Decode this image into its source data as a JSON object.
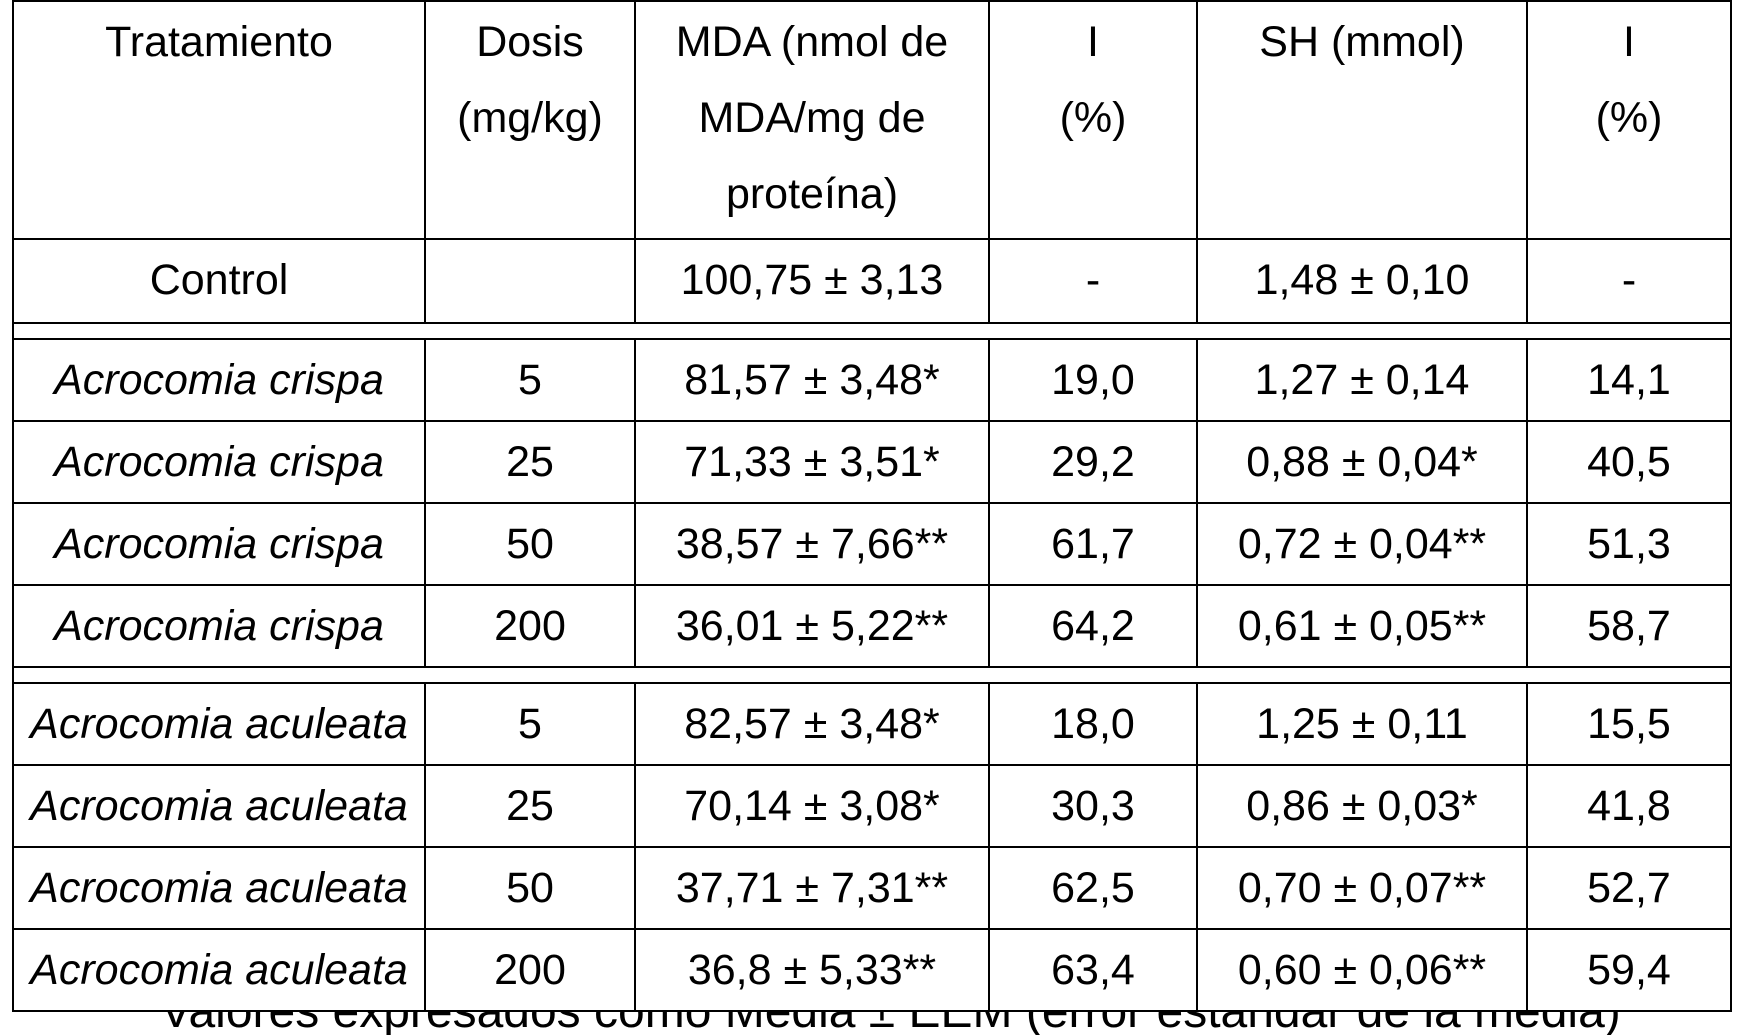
{
  "table": {
    "headers": {
      "treatment": "Tratamiento",
      "dose_line1": "Dosis",
      "dose_line2": "(mg/kg)",
      "mda_line1": "MDA (nmol de",
      "mda_line2": "MDA/mg de",
      "mda_line3": "proteína)",
      "i_mda_line1": "I",
      "i_mda_line2": "(%)",
      "sh_line1": "SH (mmol)",
      "i_sh_line1": "I",
      "i_sh_line2": "(%)"
    },
    "control": {
      "treatment": "Control",
      "dose": "",
      "mda": "100,75 ± 3,13",
      "i_mda": "-",
      "sh": "1,48 ± 0,10",
      "i_sh": "-"
    },
    "crispa_rows": [
      {
        "treatment": "Acrocomia crispa",
        "dose": "5",
        "mda": "81,57 ± 3,48*",
        "i_mda": "19,0",
        "sh": "1,27 ± 0,14",
        "i_sh": "14,1"
      },
      {
        "treatment": "Acrocomia crispa",
        "dose": "25",
        "mda": "71,33 ± 3,51*",
        "i_mda": "29,2",
        "sh": "0,88 ± 0,04*",
        "i_sh": "40,5"
      },
      {
        "treatment": "Acrocomia crispa",
        "dose": "50",
        "mda": "38,57 ± 7,66**",
        "i_mda": "61,7",
        "sh": "0,72 ± 0,04**",
        "i_sh": "51,3"
      },
      {
        "treatment": "Acrocomia crispa",
        "dose": "200",
        "mda": "36,01 ± 5,22**",
        "i_mda": "64,2",
        "sh": "0,61 ± 0,05**",
        "i_sh": "58,7"
      }
    ],
    "aculeata_rows": [
      {
        "treatment": "Acrocomia aculeata",
        "dose": "5",
        "mda": "82,57 ± 3,48*",
        "i_mda": "18,0",
        "sh": "1,25 ± 0,11",
        "i_sh": "15,5"
      },
      {
        "treatment": "Acrocomia aculeata",
        "dose": "25",
        "mda": "70,14 ± 3,08*",
        "i_mda": "30,3",
        "sh": "0,86 ± 0,03*",
        "i_sh": "41,8"
      },
      {
        "treatment": "Acrocomia aculeata",
        "dose": "50",
        "mda": "37,71 ± 7,31**",
        "i_mda": "62,5",
        "sh": "0,70 ± 0,07**",
        "i_sh": "52,7"
      },
      {
        "treatment": "Acrocomia aculeata",
        "dose": "200",
        "mda": "36,8 ± 5,33**",
        "i_mda": "63,4",
        "sh": "0,60 ± 0,06**",
        "i_sh": "59,4"
      }
    ]
  },
  "footnote": {
    "text": "Valores expresados como Media ± EEM (error estándar de la media)"
  }
}
